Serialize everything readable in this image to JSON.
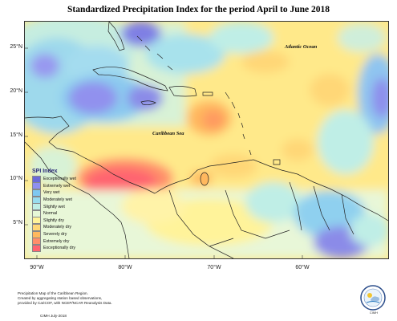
{
  "title": "Standardized Precipitation Index for the period April to June 2018",
  "map": {
    "latitude_ticks": [
      "25°N",
      "20°N",
      "15°N",
      "10°N",
      "5°N"
    ],
    "longitude_ticks": [
      "90°W",
      "80°W",
      "70°W",
      "60°W"
    ],
    "labels": {
      "atlantic": "Atlantic Ocean",
      "caribbean": "Caribbean Sea"
    }
  },
  "legend": {
    "title": "SPI Index",
    "items": [
      {
        "label": "Exceptionally wet",
        "color": "#6a6ad8"
      },
      {
        "label": "Extremely wet",
        "color": "#8f8ff0"
      },
      {
        "label": "Very wet",
        "color": "#7fc8f0"
      },
      {
        "label": "Moderately wet",
        "color": "#98dcee"
      },
      {
        "label": "Slightly wet",
        "color": "#bfeee6"
      },
      {
        "label": "Normal",
        "color": "#e6f7d6"
      },
      {
        "label": "Slightly dry",
        "color": "#fff39a"
      },
      {
        "label": "Moderately dry",
        "color": "#ffd777"
      },
      {
        "label": "Severely dry",
        "color": "#ffb85e"
      },
      {
        "label": "Extremely dry",
        "color": "#ff8f6a"
      },
      {
        "label": "Exceptionally dry",
        "color": "#ff6470"
      }
    ]
  },
  "footnote": {
    "line1": "Precipitation Map of the Caribbean Region.",
    "line2": "Created by aggregating station based observations,",
    "line3": "provided by CariCOF, with NCEP/NCAR Reanalysis Data."
  },
  "credit": "CIMH July-2018",
  "logo_text": "CIMH"
}
